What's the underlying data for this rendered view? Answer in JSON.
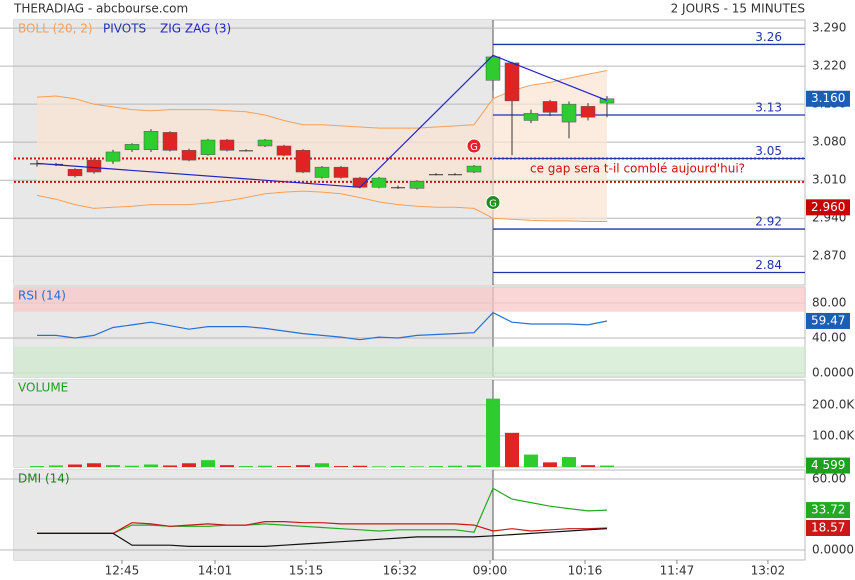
{
  "header": {
    "title": "THERADIAG - abcbourse.com",
    "period": "2 JOURS - 15 MINUTES"
  },
  "chart_data": [
    {
      "type": "candlestick",
      "x": [
        0,
        1,
        2,
        3,
        4,
        5,
        6,
        7,
        8,
        9,
        10,
        11,
        12,
        13,
        14,
        15,
        16,
        17,
        18,
        19,
        20,
        21,
        22,
        23,
        24,
        25,
        26,
        27,
        28,
        29,
        30
      ],
      "sessions": [
        0,
        24
      ],
      "xlim": [
        -1.21,
        40.42
      ],
      "xticks": [
        {
          "value": 4.47,
          "label": "12:45"
        },
        {
          "value": 9.37,
          "label": "14:01"
        },
        {
          "value": 14.16,
          "label": "15:15"
        },
        {
          "value": 19.1,
          "label": "16:32"
        },
        {
          "value": 23.84,
          "label": "09:00"
        },
        {
          "value": 28.84,
          "label": "10:16"
        },
        {
          "value": 33.68,
          "label": "11:47"
        },
        {
          "value": 38.47,
          "label": "13:02"
        }
      ],
      "open": [
        3.041,
        3.04,
        3.03,
        3.047,
        3.045,
        3.066,
        3.066,
        3.098,
        3.065,
        3.057,
        3.084,
        3.065,
        3.073,
        3.073,
        3.065,
        3.015,
        3.034,
        3.014,
        2.997,
        2.997,
        2.995,
        3.021,
        3.021,
        3.025,
        3.194,
        3.226,
        3.12,
        3.155,
        3.117,
        3.146,
        3.152
      ],
      "high": [
        3.047,
        3.042,
        3.032,
        3.05,
        3.066,
        3.078,
        3.104,
        3.1,
        3.068,
        3.086,
        3.086,
        3.067,
        3.086,
        3.075,
        3.067,
        3.036,
        3.036,
        3.016,
        3.016,
        3.0,
        3.01,
        3.023,
        3.023,
        3.038,
        3.24,
        3.228,
        3.14,
        3.158,
        3.155,
        3.152,
        3.165
      ],
      "low": [
        3.035,
        3.036,
        3.015,
        3.022,
        3.04,
        3.062,
        3.062,
        3.063,
        3.045,
        3.055,
        3.063,
        3.063,
        3.071,
        3.054,
        3.023,
        3.013,
        3.013,
        2.995,
        2.995,
        2.994,
        2.993,
        3.019,
        3.019,
        3.023,
        3.175,
        3.056,
        3.115,
        3.128,
        3.087,
        3.12,
        3.126
      ],
      "close": [
        3.041,
        3.04,
        3.018,
        3.025,
        3.062,
        3.076,
        3.1,
        3.065,
        3.047,
        3.084,
        3.065,
        3.065,
        3.084,
        3.056,
        3.025,
        3.034,
        3.015,
        2.997,
        3.014,
        2.997,
        3.008,
        3.021,
        3.021,
        3.036,
        3.237,
        3.156,
        3.133,
        3.135,
        3.15,
        3.126,
        3.16
      ],
      "up_color": "#2ecc2e",
      "down_color": "#e02424",
      "ylim": [
        2.817,
        3.305
      ],
      "yticks": [
        {
          "value": 3.29,
          "label": "3.290"
        },
        {
          "value": 3.22,
          "label": "3.220"
        },
        {
          "value": 3.15,
          "label": "3.150"
        },
        {
          "value": 3.08,
          "label": "3.080"
        },
        {
          "value": 3.01,
          "label": "3.010"
        },
        {
          "value": 2.94,
          "label": "2.940"
        },
        {
          "value": 2.87,
          "label": "2.870"
        }
      ],
      "grid": true,
      "bollinger": {
        "name": "BOLL (20, 2)",
        "color": "#f5a05a",
        "fill": "#fbe4d2",
        "upper": [
          3.163,
          3.165,
          3.16,
          3.15,
          3.145,
          3.14,
          3.138,
          3.14,
          3.14,
          3.14,
          3.138,
          3.136,
          3.13,
          3.12,
          3.112,
          3.112,
          3.11,
          3.108,
          3.106,
          3.106,
          3.106,
          3.108,
          3.11,
          3.112,
          3.16,
          3.175,
          3.185,
          3.19,
          3.198,
          3.205,
          3.212
        ],
        "lower": [
          2.982,
          2.975,
          2.965,
          2.958,
          2.96,
          2.962,
          2.965,
          2.965,
          2.965,
          2.968,
          2.972,
          2.978,
          2.985,
          2.988,
          2.99,
          2.988,
          2.985,
          2.978,
          2.97,
          2.965,
          2.962,
          2.96,
          2.96,
          2.958,
          2.94,
          2.938,
          2.936,
          2.935,
          2.935,
          2.934,
          2.934
        ]
      },
      "pivots": {
        "name": "PIVOTS",
        "color": "#2233aa",
        "values": [
          3.26,
          3.13,
          3.05,
          2.92,
          2.84
        ]
      },
      "zigzag": {
        "name": "ZIG ZAG (3)",
        "color": "#2222cc",
        "x": [
          0,
          17,
          24,
          30
        ],
        "values": [
          3.041,
          2.997,
          3.24,
          3.157
        ]
      },
      "gap": {
        "color": "#d01010",
        "values": [
          3.05,
          3.007
        ],
        "annotation": "ce gap sera t-il comblé aujourd'hui?"
      },
      "signals": [
        {
          "label": "G",
          "x": 23,
          "value": 3.073,
          "color": "#e02424"
        },
        {
          "label": "G",
          "x": 24,
          "value": 2.969,
          "color": "#1f8f1f"
        }
      ],
      "last_label": {
        "value": 3.16,
        "label": "3.160",
        "color": "#1a5fb4"
      },
      "marker_label": {
        "value": 2.96,
        "label": "2.960",
        "color": "#c80000"
      }
    },
    {
      "type": "line",
      "label": "RSI (14)",
      "color": "#2a6fd6",
      "values": [
        43,
        43,
        40,
        43,
        52,
        55,
        58,
        54,
        50,
        53,
        53,
        53,
        51,
        48,
        45,
        43,
        41,
        38,
        41,
        40,
        43,
        44,
        45,
        46,
        69,
        58,
        56,
        56,
        56,
        55,
        59.47
      ],
      "zones": {
        "high": 70,
        "low": 30,
        "high_color": "#f8c8c8",
        "low_color": "#cfe9cf"
      },
      "ylim": [
        -4.6,
        98.3
      ],
      "yticks": [
        {
          "value": 80,
          "label": "80.00"
        },
        {
          "value": 40,
          "label": "40.00"
        },
        {
          "value": 0,
          "label": "0.0000"
        }
      ],
      "grid": true,
      "last_color": "#1a5fb4"
    },
    {
      "type": "volume",
      "label": "VOLUME",
      "label_color": "#1f9f1f",
      "values": [
        3000,
        5000,
        8000,
        12000,
        6000,
        4000,
        8000,
        5000,
        12000,
        22000,
        6000,
        3000,
        4000,
        3000,
        6000,
        12000,
        3000,
        4000,
        2000,
        3000,
        2000,
        3000,
        4000,
        5000,
        220000,
        110000,
        40000,
        15000,
        32000,
        6000,
        4599
      ],
      "ylim": [
        0,
        280000
      ],
      "yticks": [
        {
          "value": 200000,
          "label": "200.0K"
        },
        {
          "value": 100000,
          "label": "100.0K"
        }
      ],
      "grid": true,
      "last_label": {
        "value": 4599,
        "label": "4 599",
        "color": "#1f9f1f"
      }
    },
    {
      "type": "dmi",
      "label": "DMI (14)",
      "label_color": "#1f7f1f",
      "series": [
        {
          "color": "#22aa22",
          "values": [
            14,
            14,
            14,
            14,
            14,
            21,
            21,
            20,
            20,
            20,
            21,
            21,
            22,
            21,
            20,
            19,
            18,
            17,
            16,
            17,
            17,
            17,
            17,
            15,
            52,
            43,
            40,
            37,
            35,
            33,
            33.72
          ]
        },
        {
          "color": "#c81818",
          "values": [
            14,
            14,
            14,
            14,
            14,
            23,
            22,
            20,
            21,
            22,
            21,
            21,
            24,
            24,
            23,
            23,
            22,
            22,
            22,
            22,
            22,
            22,
            22,
            21,
            16,
            18,
            16,
            17,
            18,
            18,
            18.57
          ]
        },
        {
          "color": "#111111",
          "values": [
            14,
            14,
            14,
            14,
            14,
            4,
            4,
            4,
            3,
            3,
            3,
            3,
            3,
            4,
            5,
            6,
            7,
            8,
            9,
            10,
            11,
            11,
            11,
            11,
            12,
            13,
            14,
            15,
            16,
            17,
            18
          ]
        }
      ],
      "ylim": [
        -8.5,
        67.6
      ],
      "yticks": [
        {
          "value": 60,
          "label": "60.00"
        },
        {
          "value": 0,
          "label": "0.0000"
        }
      ],
      "grid": true,
      "last_series": [
        0,
        1
      ]
    }
  ]
}
